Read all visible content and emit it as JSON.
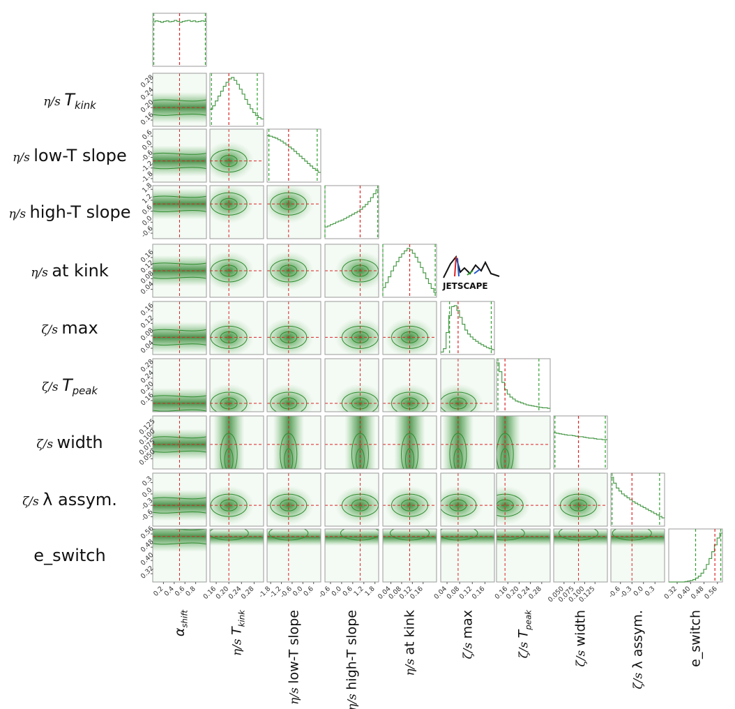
{
  "chart_data": {
    "type": "corner",
    "title": "",
    "parameters": [
      {
        "id": "alpha_shift",
        "row_label": "",
        "col_label": "α_shift",
        "col_prefix": "",
        "col_main": "α",
        "col_sub": "shift",
        "ticks": [
          "0.2",
          "0.4",
          "0.6",
          "0.8"
        ],
        "tick_values": [
          0.2,
          0.4,
          0.6,
          0.8
        ],
        "range": [
          0.0,
          1.0
        ],
        "truth": 0.5,
        "interval": [
          0.02,
          0.98
        ],
        "histogram": [
          0.91,
          0.93,
          0.92,
          0.9,
          0.92,
          0.93,
          0.91,
          0.92,
          0.94,
          0.92,
          0.9,
          0.92,
          0.93,
          0.94,
          0.92,
          0.93,
          0.91,
          0.92,
          0.93,
          0.92
        ]
      },
      {
        "id": "eta_T_kink",
        "row_label": "η/s T_kink",
        "col_label": "η/s T_kink",
        "col_prefix": "η/s",
        "col_main": "T",
        "col_sub": "kink",
        "ticks": [
          "0.16",
          "0.20",
          "0.24",
          "0.28"
        ],
        "tick_values": [
          0.16,
          0.2,
          0.24,
          0.28
        ],
        "range": [
          0.14,
          0.31
        ],
        "truth": 0.2,
        "interval": [
          0.145,
          0.29
        ],
        "histogram": [
          0.35,
          0.42,
          0.52,
          0.62,
          0.72,
          0.82,
          0.9,
          0.97,
          1.0,
          0.94,
          0.86,
          0.76,
          0.66,
          0.55,
          0.45,
          0.36,
          0.28,
          0.22,
          0.18,
          0.15
        ]
      },
      {
        "id": "eta_low_T_slope",
        "row_label": "η/s low-T slope",
        "col_label": "η/s low-T slope",
        "col_prefix": "η/s",
        "col_main": "low-T slope",
        "col_sub": "",
        "ticks": [
          "-1.8",
          "-1.2",
          "-0.6",
          "0.0",
          "0.6"
        ],
        "tick_values": [
          -1.8,
          -1.2,
          -0.6,
          0.0,
          0.6
        ],
        "range": [
          -2.0,
          1.0
        ],
        "truth": -0.8,
        "interval": [
          -1.9,
          0.8
        ],
        "histogram": [
          0.95,
          0.94,
          0.92,
          0.9,
          0.87,
          0.84,
          0.8,
          0.76,
          0.72,
          0.68,
          0.63,
          0.58,
          0.53,
          0.48,
          0.43,
          0.38,
          0.33,
          0.28,
          0.24,
          0.2
        ]
      },
      {
        "id": "eta_high_T_slope",
        "row_label": "η/s high-T slope",
        "col_label": "η/s high-T slope",
        "col_prefix": "η/s",
        "col_main": "high-T slope",
        "col_sub": "",
        "ticks": [
          "-0.6",
          "0.0",
          "0.6",
          "1.2",
          "1.8"
        ],
        "tick_values": [
          -0.6,
          0.0,
          0.6,
          1.2,
          1.8
        ],
        "range": [
          -0.9,
          2.0
        ],
        "truth": 1.0,
        "interval": [
          -0.9,
          1.95
        ],
        "histogram": [
          0.24,
          0.26,
          0.29,
          0.31,
          0.34,
          0.36,
          0.38,
          0.41,
          0.44,
          0.47,
          0.5,
          0.53,
          0.56,
          0.6,
          0.65,
          0.7,
          0.76,
          0.84,
          0.92,
          1.0
        ]
      },
      {
        "id": "eta_at_kink",
        "row_label": "η/s at kink",
        "col_label": "η/s at kink",
        "col_prefix": "η/s",
        "col_main": "at kink",
        "col_sub": "",
        "ticks": [
          "0.04",
          "0.08",
          "0.12",
          "0.16"
        ],
        "tick_values": [
          0.04,
          0.08,
          0.12,
          0.16
        ],
        "range": [
          0.01,
          0.21
        ],
        "truth": 0.11,
        "interval": [
          0.01,
          0.205
        ],
        "histogram": [
          0.2,
          0.3,
          0.42,
          0.54,
          0.64,
          0.73,
          0.82,
          0.89,
          0.95,
          1.0,
          0.97,
          0.9,
          0.82,
          0.72,
          0.61,
          0.5,
          0.38,
          0.28,
          0.18,
          0.1
        ]
      },
      {
        "id": "zeta_max",
        "row_label": "ζ/s max",
        "col_label": "ζ/s max",
        "col_prefix": "ζ/s",
        "col_main": "max",
        "col_sub": "",
        "ticks": [
          "0.04",
          "0.08",
          "0.12",
          "0.16"
        ],
        "tick_values": [
          0.04,
          0.08,
          0.12,
          0.16
        ],
        "range": [
          0.02,
          0.19
        ],
        "truth": 0.075,
        "interval": [
          0.048,
          0.18
        ],
        "histogram": [
          0.05,
          0.12,
          0.45,
          0.8,
          0.98,
          1.0,
          0.9,
          0.76,
          0.62,
          0.5,
          0.42,
          0.36,
          0.31,
          0.27,
          0.23,
          0.2,
          0.17,
          0.14,
          0.12,
          0.1
        ]
      },
      {
        "id": "zeta_T_peak",
        "row_label": "ζ/s T_peak",
        "col_label": "ζ/s T_peak",
        "col_prefix": "ζ/s",
        "col_main": "T",
        "col_sub": "peak",
        "ticks": [
          "0.16",
          "0.20",
          "0.24",
          "0.28"
        ],
        "tick_values": [
          0.16,
          0.2,
          0.24,
          0.28
        ],
        "range": [
          0.12,
          0.31
        ],
        "truth": 0.15,
        "interval": [
          0.125,
          0.27
        ],
        "histogram": [
          1.0,
          0.82,
          0.6,
          0.45,
          0.36,
          0.3,
          0.26,
          0.22,
          0.2,
          0.18,
          0.16,
          0.14,
          0.13,
          0.12,
          0.11,
          0.1,
          0.09,
          0.08,
          0.08,
          0.07
        ]
      },
      {
        "id": "zeta_width",
        "row_label": "ζ/s width",
        "col_label": "ζ/s width",
        "col_prefix": "ζ/s",
        "col_main": "width",
        "col_sub": "",
        "ticks": [
          "0.050",
          "0.075",
          "0.100",
          "0.125"
        ],
        "tick_values": [
          0.05,
          0.075,
          0.1,
          0.125
        ],
        "range": [
          0.025,
          0.155
        ],
        "truth": 0.085,
        "interval": [
          0.028,
          0.15
        ],
        "histogram": [
          0.74,
          0.73,
          0.72,
          0.71,
          0.7,
          0.69,
          0.69,
          0.68,
          0.67,
          0.66,
          0.66,
          0.65,
          0.64,
          0.63,
          0.63,
          0.62,
          0.61,
          0.61,
          0.6,
          0.6
        ]
      },
      {
        "id": "zeta_lambda_assym",
        "row_label": "ζ/s λ assym.",
        "col_label": "ζ/s λ assym.",
        "col_prefix": "ζ/s",
        "col_main": "λ assym.",
        "col_sub": "",
        "ticks": [
          "-0.6",
          "-0.3",
          "0.0",
          "0.3"
        ],
        "tick_values": [
          -0.6,
          -0.3,
          0.0,
          0.3
        ],
        "range": [
          -0.85,
          0.55
        ],
        "truth": -0.3,
        "interval": [
          -0.82,
          0.42
        ],
        "histogram": [
          1.0,
          0.88,
          0.78,
          0.72,
          0.66,
          0.62,
          0.58,
          0.54,
          0.5,
          0.47,
          0.44,
          0.41,
          0.38,
          0.35,
          0.32,
          0.29,
          0.26,
          0.23,
          0.2,
          0.17
        ]
      },
      {
        "id": "e_switch",
        "row_label": "e_switch",
        "col_label": "e_switch",
        "col_prefix": "",
        "col_main": "e_switch",
        "col_sub": "",
        "ticks": [
          "0.32",
          "0.40",
          "0.48",
          "0.56"
        ],
        "tick_values": [
          0.32,
          0.4,
          0.48,
          0.56
        ],
        "range": [
          0.27,
          0.59
        ],
        "truth": 0.545,
        "interval": [
          0.43,
          0.58
        ],
        "histogram": [
          0.0,
          0.0,
          0.0,
          0.0,
          0.0,
          0.0,
          0.01,
          0.02,
          0.03,
          0.05,
          0.08,
          0.12,
          0.18,
          0.26,
          0.36,
          0.48,
          0.62,
          0.76,
          0.9,
          1.0
        ]
      }
    ],
    "left_labels": [
      {
        "prefix": "",
        "main": "",
        "sub": ""
      },
      {
        "prefix": "η/s",
        "main": "T",
        "sub": "kink"
      },
      {
        "prefix": "η/s",
        "main": "low-T slope",
        "sub": ""
      },
      {
        "prefix": "η/s",
        "main": "high-T slope",
        "sub": ""
      },
      {
        "prefix": "η/s",
        "main": "at kink",
        "sub": ""
      },
      {
        "prefix": "ζ/s",
        "main": "max",
        "sub": ""
      },
      {
        "prefix": "ζ/s",
        "main": "T",
        "sub": "peak"
      },
      {
        "prefix": "ζ/s",
        "main": "width",
        "sub": ""
      },
      {
        "prefix": "ζ/s",
        "main": "λ assym.",
        "sub": ""
      },
      {
        "prefix": "",
        "main": "e_switch",
        "sub": ""
      }
    ],
    "colors": {
      "posterior": "#4a9a4a",
      "density": "#2e8b2e",
      "truth_line": "#dd2222",
      "interval_line": "#2ea02e",
      "frame": "#999999",
      "background": "#ffffff"
    }
  },
  "logo": {
    "text": "JETSCAPE",
    "icon": "jetscape-logo-icon"
  }
}
